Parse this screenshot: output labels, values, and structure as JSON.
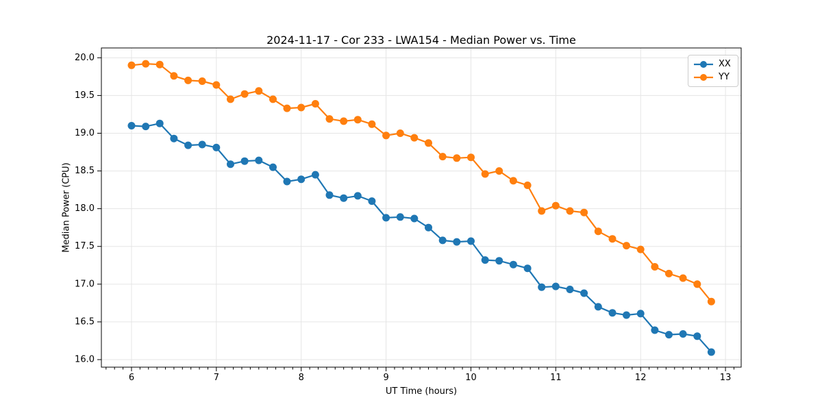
{
  "chart_data": {
    "type": "line",
    "title": "2024-11-17 - Cor 233 - LWA154 - Median Power vs. Time",
    "xlabel": "UT Time (hours)",
    "ylabel": "Median Power (CPU)",
    "xlim": [
      5.645,
      13.185
    ],
    "ylim": [
      15.9,
      20.13
    ],
    "x_major_ticks": [
      6,
      7,
      8,
      9,
      10,
      11,
      12,
      13
    ],
    "x_minor_tick_step": 0.1,
    "y_major_ticks": [
      16.0,
      16.5,
      17.0,
      17.5,
      18.0,
      18.5,
      19.0,
      19.5,
      20.0
    ],
    "grid": true,
    "legend_position": "upper right",
    "marker": "circle",
    "x": [
      6.0,
      6.167,
      6.333,
      6.5,
      6.667,
      6.833,
      7.0,
      7.167,
      7.333,
      7.5,
      7.667,
      7.833,
      8.0,
      8.167,
      8.333,
      8.5,
      8.667,
      8.833,
      9.0,
      9.167,
      9.333,
      9.5,
      9.667,
      9.833,
      10.0,
      10.167,
      10.333,
      10.5,
      10.667,
      10.833,
      11.0,
      11.167,
      11.333,
      11.5,
      11.667,
      11.833,
      12.0,
      12.167,
      12.333,
      12.5,
      12.667,
      12.833
    ],
    "series": [
      {
        "name": "XX",
        "color": "#1f77b4",
        "values": [
          19.1,
          19.09,
          19.13,
          18.93,
          18.84,
          18.85,
          18.81,
          18.59,
          18.63,
          18.64,
          18.55,
          18.36,
          18.39,
          18.45,
          18.18,
          18.14,
          18.17,
          18.1,
          17.88,
          17.89,
          17.87,
          17.75,
          17.58,
          17.56,
          17.57,
          17.32,
          17.31,
          17.26,
          17.21,
          16.96,
          16.97,
          16.93,
          16.88,
          16.7,
          16.62,
          16.59,
          16.61,
          16.39,
          16.33,
          16.34,
          16.31,
          16.1
        ]
      },
      {
        "name": "YY",
        "color": "#ff7f0e",
        "values": [
          19.9,
          19.92,
          19.91,
          19.76,
          19.7,
          19.69,
          19.64,
          19.45,
          19.52,
          19.56,
          19.45,
          19.33,
          19.34,
          19.39,
          19.19,
          19.16,
          19.18,
          19.12,
          18.97,
          19.0,
          18.94,
          18.87,
          18.69,
          18.67,
          18.68,
          18.46,
          18.5,
          18.37,
          18.31,
          17.97,
          18.04,
          17.97,
          17.95,
          17.7,
          17.6,
          17.51,
          17.46,
          17.23,
          17.14,
          17.08,
          17.0,
          16.77
        ]
      }
    ]
  },
  "style": {
    "grid_color": "#e5e5e5",
    "spine_color": "#000000",
    "tick_color": "#000000",
    "background": "#ffffff"
  }
}
